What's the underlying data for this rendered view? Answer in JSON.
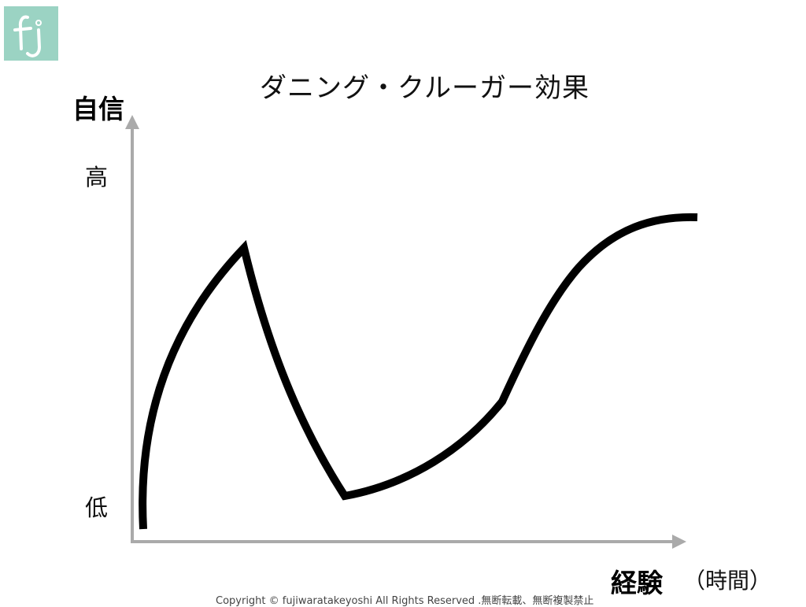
{
  "logo": {
    "text": "fj",
    "color": "#9bd3c3"
  },
  "title": "ダニング・クルーガー効果",
  "y_axis": {
    "label": "自信",
    "high": "高",
    "low": "低"
  },
  "x_axis": {
    "label": "経験",
    "unit": "（時間）"
  },
  "curve": {
    "description_points": [
      "low start",
      "peak",
      "trough",
      "gradual rise",
      "plateau"
    ],
    "color": "#000000"
  },
  "axis_color": "#aaaaaa",
  "copyright": "Copyright © fujiwaratakeyoshi All Rights Reserved .無断転載、無断複製禁止"
}
